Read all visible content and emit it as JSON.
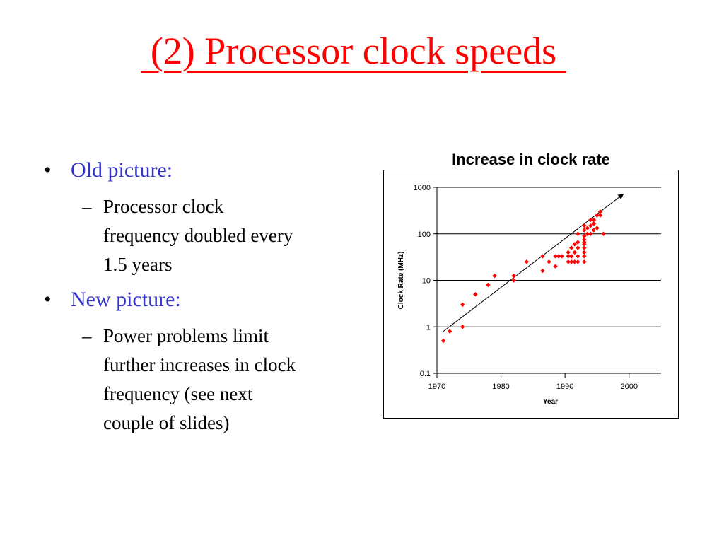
{
  "slide": {
    "title": " (2) Processor clock speeds ",
    "bullets": [
      {
        "label": "Old picture:",
        "sub": [
          "Processor clock",
          "frequency doubled every",
          "1.5 years"
        ]
      },
      {
        "label": "New picture:",
        "sub": [
          "Power problems limit",
          "further increases in clock",
          "frequency (see next",
          "couple of slides)"
        ]
      }
    ]
  },
  "chart_data": {
    "type": "scatter",
    "title": "Increase in clock rate",
    "xlabel": "Year",
    "ylabel": "Clock Rate (MHz)",
    "xlim": [
      1970,
      2005
    ],
    "ylim": [
      0.1,
      1000
    ],
    "yscale": "log",
    "x_ticks": [
      "1970",
      "1980",
      "1990",
      "2000"
    ],
    "y_ticks": [
      "0.1",
      "1",
      "10",
      "100",
      "1000"
    ],
    "grid": "horizontal",
    "marker_color": "#ff0000",
    "series": [
      {
        "points": [
          [
            1971,
            0.5
          ],
          [
            1972,
            0.8
          ],
          [
            1974,
            1
          ],
          [
            1974,
            3
          ],
          [
            1976,
            5
          ],
          [
            1978,
            8
          ],
          [
            1979,
            12.5
          ],
          [
            1982,
            10
          ],
          [
            1982,
            12.5
          ],
          [
            1984,
            25
          ],
          [
            1986.5,
            16
          ],
          [
            1986.5,
            33
          ],
          [
            1987.5,
            25
          ],
          [
            1988.5,
            20
          ],
          [
            1988.5,
            33
          ],
          [
            1989,
            33
          ],
          [
            1989.5,
            33
          ],
          [
            1990.5,
            25
          ],
          [
            1990.5,
            33
          ],
          [
            1990.5,
            40
          ],
          [
            1991,
            25
          ],
          [
            1991,
            33
          ],
          [
            1991,
            50
          ],
          [
            1991.5,
            25
          ],
          [
            1991.5,
            40
          ],
          [
            1991.5,
            60
          ],
          [
            1992,
            25
          ],
          [
            1992,
            33
          ],
          [
            1992,
            50
          ],
          [
            1992,
            66
          ],
          [
            1992,
            100
          ],
          [
            1993,
            25
          ],
          [
            1993,
            33
          ],
          [
            1993,
            40
          ],
          [
            1993,
            50
          ],
          [
            1993,
            60
          ],
          [
            1993,
            66
          ],
          [
            1993,
            75
          ],
          [
            1993,
            90
          ],
          [
            1993,
            120
          ],
          [
            1993,
            150
          ],
          [
            1993.5,
            100
          ],
          [
            1993.5,
            133
          ],
          [
            1994,
            100
          ],
          [
            1994,
            150
          ],
          [
            1994,
            200
          ],
          [
            1994.5,
            120
          ],
          [
            1994.5,
            166
          ],
          [
            1994.5,
            200
          ],
          [
            1995,
            133
          ],
          [
            1995,
            250
          ],
          [
            1995.5,
            250
          ],
          [
            1995.5,
            300
          ],
          [
            1996,
            100
          ]
        ]
      }
    ],
    "trendline": {
      "from": [
        1971,
        0.8
      ],
      "to": [
        1999,
        700
      ]
    }
  }
}
